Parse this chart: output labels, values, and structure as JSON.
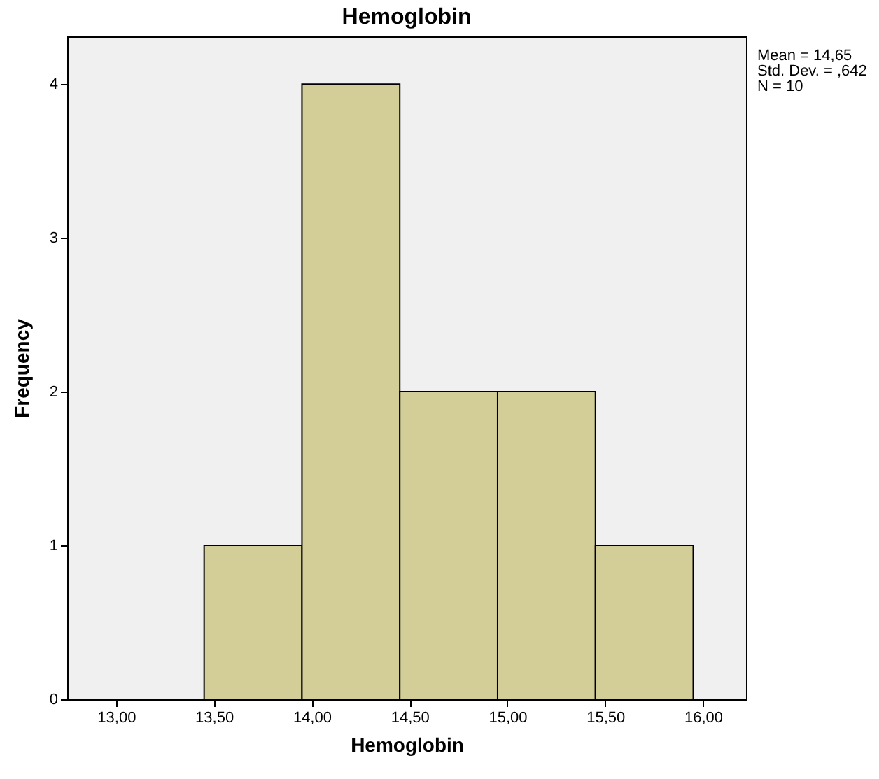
{
  "chart_data": {
    "type": "histogram",
    "title": "Hemoglobin",
    "xlabel": "Hemoglobin",
    "ylabel": "Frequency",
    "bins": [
      13.45,
      13.95,
      14.45,
      14.95,
      15.45,
      15.95
    ],
    "values": [
      1,
      4,
      2,
      2,
      1
    ],
    "color": "#d3ce97",
    "xlim": [
      12.75,
      16.22
    ],
    "xticks": [
      {
        "value": 13,
        "label": "13,00"
      },
      {
        "value": 13.5,
        "label": "13,50"
      },
      {
        "value": 14,
        "label": "14,00"
      },
      {
        "value": 14.5,
        "label": "14,50"
      },
      {
        "value": 15,
        "label": "15,00"
      },
      {
        "value": 15.5,
        "label": "15,50"
      },
      {
        "value": 16,
        "label": "16,00"
      }
    ],
    "ylim": [
      0,
      4.31
    ],
    "yticks": [
      0,
      1,
      2,
      3,
      4
    ],
    "grid": false,
    "annotations": [
      "Mean = 14,65",
      "Std. Dev. = ,642",
      "N = 10"
    ]
  }
}
